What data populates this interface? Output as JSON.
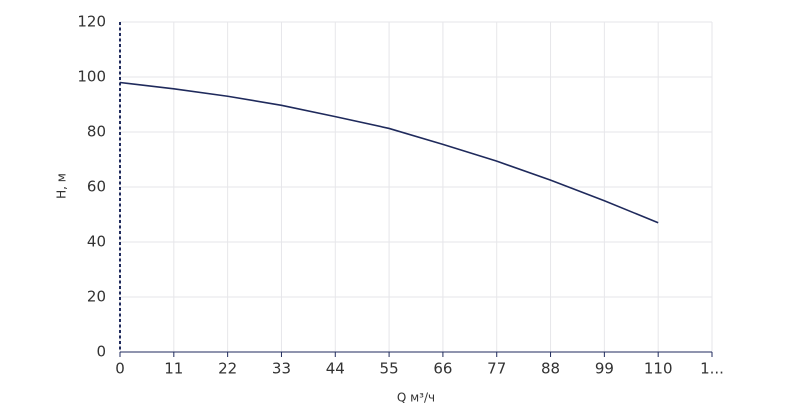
{
  "chart_data": {
    "type": "line",
    "x_label": "Q м³/ч",
    "y_label": "Н, м",
    "x": [
      0,
      11,
      22,
      33,
      44,
      55,
      66,
      77,
      88,
      99,
      110
    ],
    "series": [
      {
        "name": "H",
        "color": "#1f2a5c",
        "values": [
          98,
          95.7,
          93,
          89.7,
          85.6,
          81.3,
          75.5,
          69.4,
          62.5,
          55,
          47
        ]
      }
    ],
    "xlim": [
      0,
      121
    ],
    "xticks": [
      0,
      11,
      22,
      33,
      44,
      55,
      66,
      77,
      88,
      99,
      110,
      {
        "value": 121,
        "label": "1..."
      }
    ],
    "ylim": [
      0,
      120
    ],
    "yticks": [
      0,
      20,
      40,
      60,
      80,
      100,
      120
    ],
    "grid": true
  }
}
